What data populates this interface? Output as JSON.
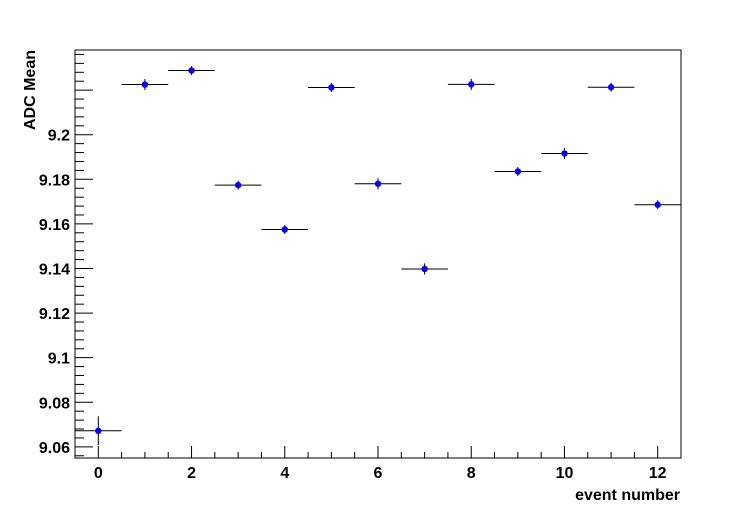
{
  "chart_data": {
    "type": "scatter",
    "title": "",
    "xlabel": "event number",
    "ylabel": "ADC Mean",
    "xlim": [
      -0.5,
      12.5
    ],
    "ylim": [
      9.055,
      9.238
    ],
    "grid": false,
    "legend": "none",
    "marker_color": "#0000ff",
    "errorbar_color": "#000000",
    "x_ticks": [
      0,
      2,
      4,
      6,
      8,
      10,
      12
    ],
    "x_tick_labels": [
      "0",
      "2",
      "4",
      "6",
      "8",
      "10",
      "12"
    ],
    "y_ticks": [
      9.06,
      9.08,
      9.1,
      9.12,
      9.14,
      9.16,
      9.18,
      9.2
    ],
    "y_tick_labels": [
      "9.06",
      "9.08",
      "9.1",
      "9.12",
      "9.14",
      "9.16",
      "9.18",
      "9.2"
    ],
    "points": [
      {
        "x": 0,
        "y": 9.0672,
        "xerr": 0.5,
        "yerr": 0.0065
      },
      {
        "x": 1,
        "y": 9.2225,
        "xerr": 0.5,
        "yerr": 0.0025
      },
      {
        "x": 2,
        "y": 9.2288,
        "xerr": 0.5,
        "yerr": 0.002
      },
      {
        "x": 3,
        "y": 9.1774,
        "xerr": 0.5,
        "yerr": 0.002
      },
      {
        "x": 4,
        "y": 9.1575,
        "xerr": 0.5,
        "yerr": 0.002
      },
      {
        "x": 5,
        "y": 9.2212,
        "xerr": 0.5,
        "yerr": 0.002
      },
      {
        "x": 6,
        "y": 9.178,
        "xerr": 0.5,
        "yerr": 0.0025
      },
      {
        "x": 7,
        "y": 9.1398,
        "xerr": 0.5,
        "yerr": 0.0025
      },
      {
        "x": 8,
        "y": 9.2226,
        "xerr": 0.5,
        "yerr": 0.0025
      },
      {
        "x": 9,
        "y": 9.1835,
        "xerr": 0.5,
        "yerr": 0.002
      },
      {
        "x": 10,
        "y": 9.1916,
        "xerr": 0.5,
        "yerr": 0.0025
      },
      {
        "x": 11,
        "y": 9.2213,
        "xerr": 0.5,
        "yerr": 0.002
      },
      {
        "x": 12,
        "y": 9.1686,
        "xerr": 0.5,
        "yerr": 0.002
      }
    ]
  }
}
